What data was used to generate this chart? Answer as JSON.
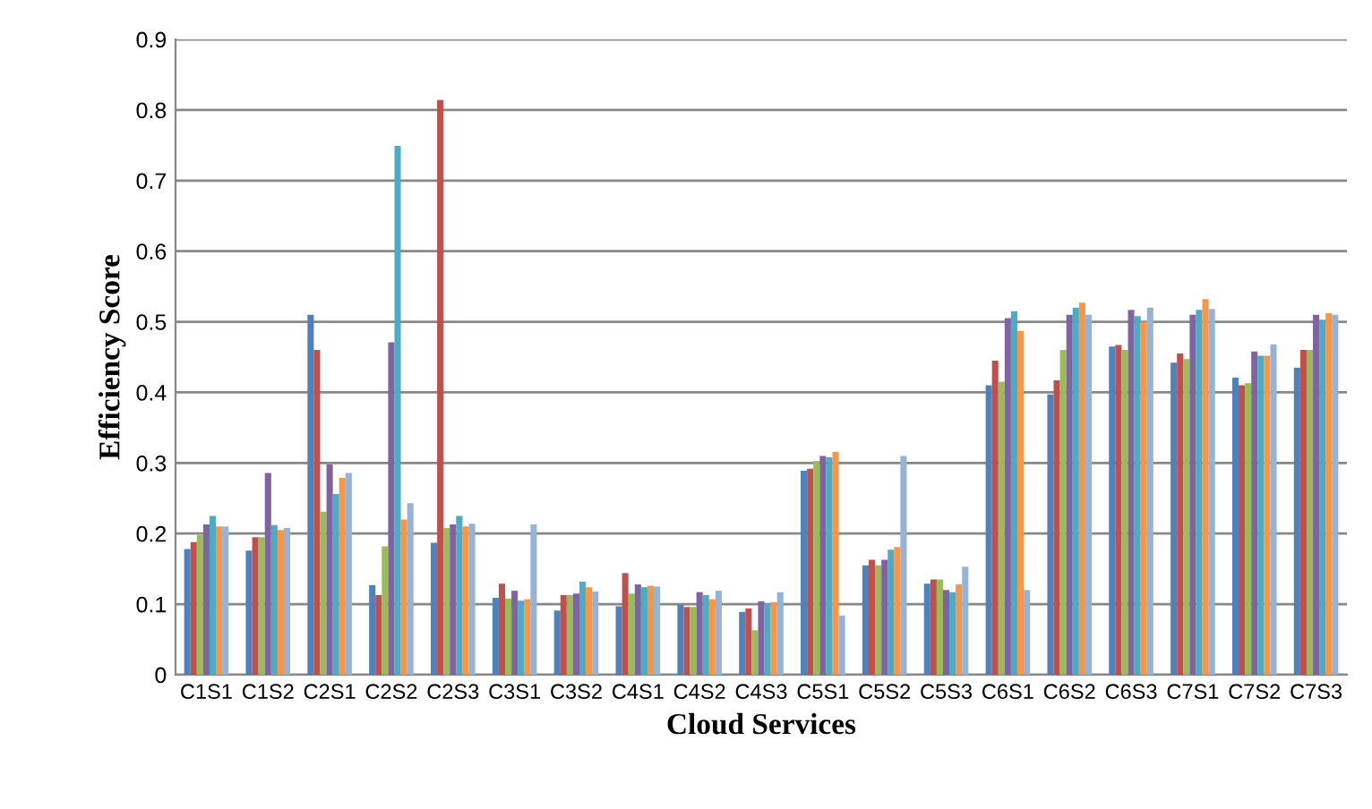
{
  "chart_data": {
    "type": "bar",
    "xlabel": "Cloud Services",
    "ylabel": "Efficiency Score",
    "categories": [
      "C1S1",
      "C1S2",
      "C2S1",
      "C2S2",
      "C2S3",
      "C3S1",
      "C3S2",
      "C4S1",
      "C4S2",
      "C4S3",
      "C5S1",
      "C5S2",
      "C5S3",
      "C6S1",
      "C6S2",
      "C6S3",
      "C7S1",
      "C7S2",
      "C7S3"
    ],
    "series": [
      {
        "color": "#4f81bd",
        "values": [
          0.178,
          0.176,
          0.51,
          0.127,
          0.187,
          0.109,
          0.091,
          0.097,
          0.099,
          0.089,
          0.289,
          0.155,
          0.129,
          0.41,
          0.397,
          0.465,
          0.442,
          0.421,
          0.435
        ]
      },
      {
        "color": "#c0504d",
        "values": [
          0.188,
          0.195,
          0.46,
          0.113,
          0.814,
          0.129,
          0.113,
          0.144,
          0.096,
          0.094,
          0.292,
          0.163,
          0.135,
          0.445,
          0.417,
          0.467,
          0.455,
          0.41,
          0.46
        ]
      },
      {
        "color": "#9bbb59",
        "values": [
          0.198,
          0.195,
          0.231,
          0.182,
          0.208,
          0.108,
          0.113,
          0.115,
          0.096,
          0.063,
          0.303,
          0.155,
          0.135,
          0.415,
          0.46,
          0.46,
          0.447,
          0.413,
          0.46
        ]
      },
      {
        "color": "#8064a2",
        "values": [
          0.213,
          0.286,
          0.298,
          0.471,
          0.213,
          0.119,
          0.115,
          0.128,
          0.117,
          0.104,
          0.31,
          0.163,
          0.12,
          0.505,
          0.51,
          0.517,
          0.51,
          0.458,
          0.51
        ]
      },
      {
        "color": "#4bacc6",
        "values": [
          0.225,
          0.212,
          0.256,
          0.749,
          0.225,
          0.105,
          0.132,
          0.124,
          0.113,
          0.101,
          0.308,
          0.177,
          0.117,
          0.515,
          0.52,
          0.508,
          0.517,
          0.452,
          0.503
        ]
      },
      {
        "color": "#f79646",
        "values": [
          0.21,
          0.205,
          0.279,
          0.22,
          0.21,
          0.107,
          0.124,
          0.126,
          0.107,
          0.103,
          0.316,
          0.181,
          0.128,
          0.487,
          0.527,
          0.5,
          0.532,
          0.452,
          0.512
        ]
      },
      {
        "color": "#95b3d7",
        "values": [
          0.21,
          0.208,
          0.286,
          0.243,
          0.214,
          0.213,
          0.118,
          0.125,
          0.119,
          0.117,
          0.084,
          0.31,
          0.153,
          0.12,
          0.51,
          0.52,
          0.518,
          0.468,
          0.51
        ]
      }
    ],
    "ylim": [
      0,
      0.9
    ],
    "yticks": [
      0,
      0.1,
      0.2,
      0.3,
      0.4,
      0.5,
      0.6,
      0.7,
      0.8,
      0.9
    ],
    "grid": "y"
  }
}
